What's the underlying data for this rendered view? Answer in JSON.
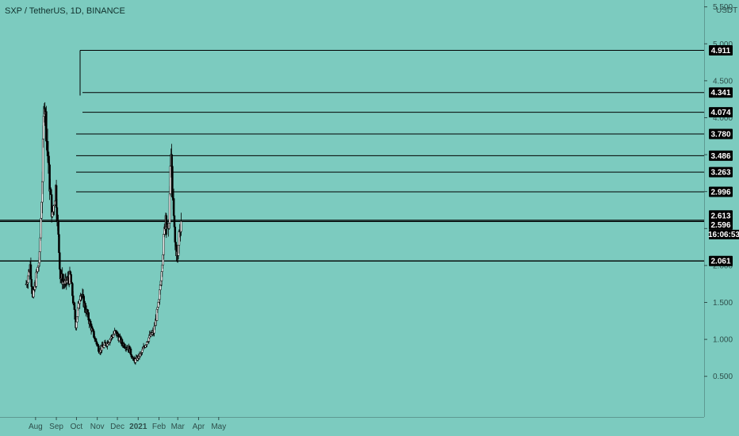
{
  "header": {
    "symbol": "SXP / TetherUS, 1D, BINANCE",
    "currency": "USDT"
  },
  "colors": {
    "background": "#7ccbbf",
    "candle_up": "#ffffff",
    "candle_down": "#000000",
    "axis_text": "#2f4f4b",
    "tag_bg": "#000000"
  },
  "timer": "16:06:53",
  "chart_data": {
    "type": "candlestick",
    "title": "SXP / TetherUS, 1D, BINANCE",
    "y_unit": "USDT",
    "ylim": [
      0.1,
      5.55
    ],
    "y_ticks": [
      {
        "value": 0.5,
        "label": "0.500"
      },
      {
        "value": 1.0,
        "label": "1.000"
      },
      {
        "value": 1.5,
        "label": "1.500"
      },
      {
        "value": 2.0,
        "label": "2.000"
      },
      {
        "value": 2.5,
        "label": "2.500"
      },
      {
        "value": 3.0,
        "label": "3.000"
      },
      {
        "value": 3.5,
        "label": "3.500"
      },
      {
        "value": 4.0,
        "label": "4.000"
      },
      {
        "value": 4.5,
        "label": "4.500"
      },
      {
        "value": 5.0,
        "label": "5.000"
      },
      {
        "value": 5.5,
        "label": "5.500"
      }
    ],
    "x_ticks": [
      {
        "date": "2020-08-01",
        "label": "Aug"
      },
      {
        "date": "2020-09-01",
        "label": "Sep"
      },
      {
        "date": "2020-10-01",
        "label": "Oct"
      },
      {
        "date": "2020-11-01",
        "label": "Nov"
      },
      {
        "date": "2020-12-01",
        "label": "Dec"
      },
      {
        "date": "2021-01-01",
        "label": "2021"
      },
      {
        "date": "2021-02-01",
        "label": "Feb"
      },
      {
        "date": "2021-03-01",
        "label": "Mar"
      },
      {
        "date": "2021-04-01",
        "label": "Apr"
      },
      {
        "date": "2021-05-01",
        "label": "May"
      }
    ],
    "last_price": {
      "value": 2.596,
      "label": "2.596"
    },
    "horizontal_levels": [
      {
        "value": 4.911,
        "label": "4.911"
      },
      {
        "value": 4.341,
        "label": "4.341"
      },
      {
        "value": 4.074,
        "label": "4.074"
      },
      {
        "value": 3.78,
        "label": "3.780"
      },
      {
        "value": 3.486,
        "label": "3.486"
      },
      {
        "value": 3.263,
        "label": "3.263"
      },
      {
        "value": 2.996,
        "label": "2.996"
      },
      {
        "value": 2.613,
        "label": "2.613"
      },
      {
        "value": 2.596,
        "label": "2.596"
      },
      {
        "value": 2.061,
        "label": "2.061"
      }
    ],
    "price_path": [
      {
        "date": "2020-07-18",
        "price": 1.75
      },
      {
        "date": "2020-07-24",
        "price": 2.0
      },
      {
        "date": "2020-07-28",
        "price": 1.55
      },
      {
        "date": "2020-08-03",
        "price": 1.9
      },
      {
        "date": "2020-08-07",
        "price": 2.1
      },
      {
        "date": "2020-08-11",
        "price": 3.2
      },
      {
        "date": "2020-08-14",
        "price": 4.3
      },
      {
        "date": "2020-08-18",
        "price": 3.7
      },
      {
        "date": "2020-08-22",
        "price": 3.1
      },
      {
        "date": "2020-08-26",
        "price": 2.65
      },
      {
        "date": "2020-08-31",
        "price": 3.05
      },
      {
        "date": "2020-09-03",
        "price": 2.55
      },
      {
        "date": "2020-09-07",
        "price": 1.85
      },
      {
        "date": "2020-09-14",
        "price": 1.75
      },
      {
        "date": "2020-09-22",
        "price": 1.85
      },
      {
        "date": "2020-09-30",
        "price": 1.2
      },
      {
        "date": "2020-10-07",
        "price": 1.65
      },
      {
        "date": "2020-10-15",
        "price": 1.4
      },
      {
        "date": "2020-10-25",
        "price": 1.1
      },
      {
        "date": "2020-11-04",
        "price": 0.85
      },
      {
        "date": "2020-11-15",
        "price": 0.95
      },
      {
        "date": "2020-11-28",
        "price": 1.1
      },
      {
        "date": "2020-12-08",
        "price": 0.95
      },
      {
        "date": "2020-12-18",
        "price": 0.88
      },
      {
        "date": "2020-12-26",
        "price": 0.7
      },
      {
        "date": "2021-01-05",
        "price": 0.8
      },
      {
        "date": "2021-01-15",
        "price": 1.0
      },
      {
        "date": "2021-01-24",
        "price": 1.1
      },
      {
        "date": "2021-02-01",
        "price": 1.5
      },
      {
        "date": "2021-02-06",
        "price": 2.1
      },
      {
        "date": "2021-02-11",
        "price": 2.7
      },
      {
        "date": "2021-02-15",
        "price": 2.4
      },
      {
        "date": "2021-02-19",
        "price": 3.5
      },
      {
        "date": "2021-02-22",
        "price": 2.8
      },
      {
        "date": "2021-02-25",
        "price": 2.3
      },
      {
        "date": "2021-03-01",
        "price": 2.1
      },
      {
        "date": "2021-03-03",
        "price": 2.45
      },
      {
        "date": "2021-03-06",
        "price": 2.6
      }
    ]
  }
}
